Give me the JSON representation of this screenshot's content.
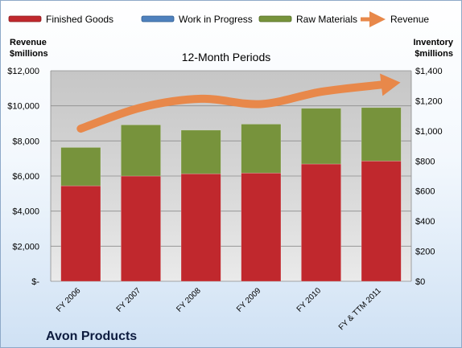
{
  "chart_data": {
    "type": "bar",
    "stacked": true,
    "subtitle": "12-Month Periods",
    "company": "Avon Products",
    "categories": [
      "FY 2006",
      "FY 2007",
      "FY 2008",
      "FY 2009",
      "FY 2010",
      "FY & TTM 2011"
    ],
    "series": [
      {
        "name": "Finished Goods",
        "axis": "right",
        "color": "#c0282d",
        "values": [
          635,
          700,
          715,
          720,
          780,
          800
        ]
      },
      {
        "name": "Work in Progress",
        "axis": "right",
        "color": "#4f81bd",
        "values": [
          0,
          0,
          0,
          0,
          0,
          0
        ]
      },
      {
        "name": "Raw Materials",
        "axis": "right",
        "color": "#77933c",
        "values": [
          255,
          340,
          290,
          325,
          370,
          355
        ]
      }
    ],
    "line_series": {
      "name": "Revenue",
      "axis": "left",
      "color": "#e8884a",
      "values": [
        8700,
        9900,
        10400,
        10100,
        10800,
        11200
      ]
    },
    "left_axis": {
      "title_line1": "Revenue",
      "title_line2": "$millions",
      "ylim": [
        0,
        12000
      ],
      "ticks": [
        0,
        2000,
        4000,
        6000,
        8000,
        10000,
        12000
      ],
      "tick_labels": [
        "$-",
        "$2,000",
        "$4,000",
        "$6,000",
        "$8,000",
        "$10,000",
        "$12,000"
      ]
    },
    "right_axis": {
      "title_line1": "Inventory",
      "title_line2": "$millions",
      "ylim": [
        0,
        1400
      ],
      "ticks": [
        0,
        200,
        400,
        600,
        800,
        1000,
        1200,
        1400
      ],
      "tick_labels": [
        "$0",
        "$200",
        "$400",
        "$600",
        "$800",
        "$1,000",
        "$1,200",
        "$1,400"
      ]
    },
    "grid": true,
    "legend_position": "top"
  }
}
